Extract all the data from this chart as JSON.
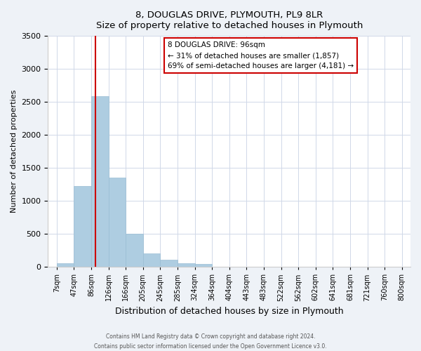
{
  "title": "8, DOUGLAS DRIVE, PLYMOUTH, PL9 8LR",
  "subtitle": "Size of property relative to detached houses in Plymouth",
  "xlabel": "Distribution of detached houses by size in Plymouth",
  "ylabel": "Number of detached properties",
  "bin_labels": [
    "7sqm",
    "47sqm",
    "86sqm",
    "126sqm",
    "166sqm",
    "205sqm",
    "245sqm",
    "285sqm",
    "324sqm",
    "364sqm",
    "404sqm",
    "443sqm",
    "483sqm",
    "522sqm",
    "562sqm",
    "602sqm",
    "641sqm",
    "681sqm",
    "721sqm",
    "760sqm",
    "800sqm"
  ],
  "bar_values": [
    50,
    1230,
    2590,
    1350,
    500,
    200,
    110,
    50,
    40,
    0,
    0,
    0,
    0,
    0,
    0,
    0,
    0,
    0,
    0,
    0
  ],
  "bar_color": "#aecde1",
  "bar_edge_color": "#9abdd4",
  "vline_color": "#cc0000",
  "ylim": [
    0,
    3500
  ],
  "yticks": [
    0,
    500,
    1000,
    1500,
    2000,
    2500,
    3000,
    3500
  ],
  "annotation_text": "8 DOUGLAS DRIVE: 96sqm\n← 31% of detached houses are smaller (1,857)\n69% of semi-detached houses are larger (4,181) →",
  "annotation_box_color": "white",
  "annotation_box_edge": "#cc0000",
  "footnote1": "Contains HM Land Registry data © Crown copyright and database right 2024.",
  "footnote2": "Contains public sector information licensed under the Open Government Licence v3.0.",
  "background_color": "#eef2f7",
  "plot_bg_color": "white",
  "grid_color": "#d0d8e8"
}
